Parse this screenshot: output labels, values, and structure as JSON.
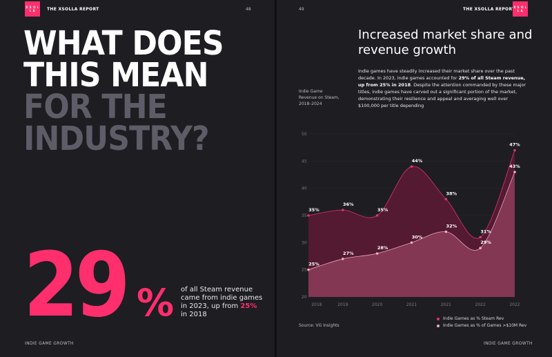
{
  "header": {
    "report_title": "THE XSOLLA REPORT",
    "left_page_number": "48",
    "right_page_number": "49",
    "logo_letters": "X S O L L A"
  },
  "left_page": {
    "title_lines_white": [
      "WHAT DOES",
      "THIS MEAN"
    ],
    "title_lines_grey": [
      "FOR THE",
      "INDUSTRY?"
    ],
    "big_stat": "29",
    "big_stat_suffix": "%",
    "stat_text_before": "of all Steam revenue came from indie games in 2023, up from ",
    "stat_highlight": "25%",
    "stat_text_after": " in 2018",
    "footer": "INDIE GAME GROWTH"
  },
  "right_page": {
    "section_title": "Increased market share and revenue growth",
    "intro_text_1": "Indie games have steadily increased their market share over the past decade. In 2023, indie games accounted for ",
    "intro_bold": "29% of all Steam revenue, up from 25% in 2018",
    "intro_text_2": ". Despite the attention commanded by these major titles, indie games have carved out a significant portion of the market, demonstrating their resilience and appeal and averaging well over $100,000 per title depending",
    "side_label": "Indie Game Revenue on Steam, 2018–2024",
    "source": "Source: VG Insights",
    "footer": "INDIE GAME GROWTH"
  },
  "colors": {
    "accent": "#ff2f6d",
    "grey_title": "#5e5c66",
    "series_dark": "#6b1f3c",
    "series_light": "#8a3b57"
  },
  "chart_data": {
    "type": "area",
    "x": [
      "2018",
      "2019",
      "2020",
      "2021",
      "2021",
      "2022",
      "2022"
    ],
    "ylim": [
      20,
      50
    ],
    "yticks": [
      20,
      25,
      30,
      35,
      40,
      45,
      50
    ],
    "series": [
      {
        "name": "Indie Games as % Steam Rev",
        "values": [
          25,
          27,
          28,
          30,
          32,
          29,
          43
        ],
        "labels": [
          "25%",
          "27%",
          "28%",
          "30%",
          "32%",
          "29%",
          "43%"
        ]
      },
      {
        "name": "Indie Games as % of Games >$10M Rev",
        "values": [
          35,
          36,
          35,
          44,
          38,
          31,
          47
        ],
        "labels": [
          "35%",
          "36%",
          "35%",
          "44%",
          "38%",
          "31%",
          "47%"
        ]
      }
    ]
  }
}
